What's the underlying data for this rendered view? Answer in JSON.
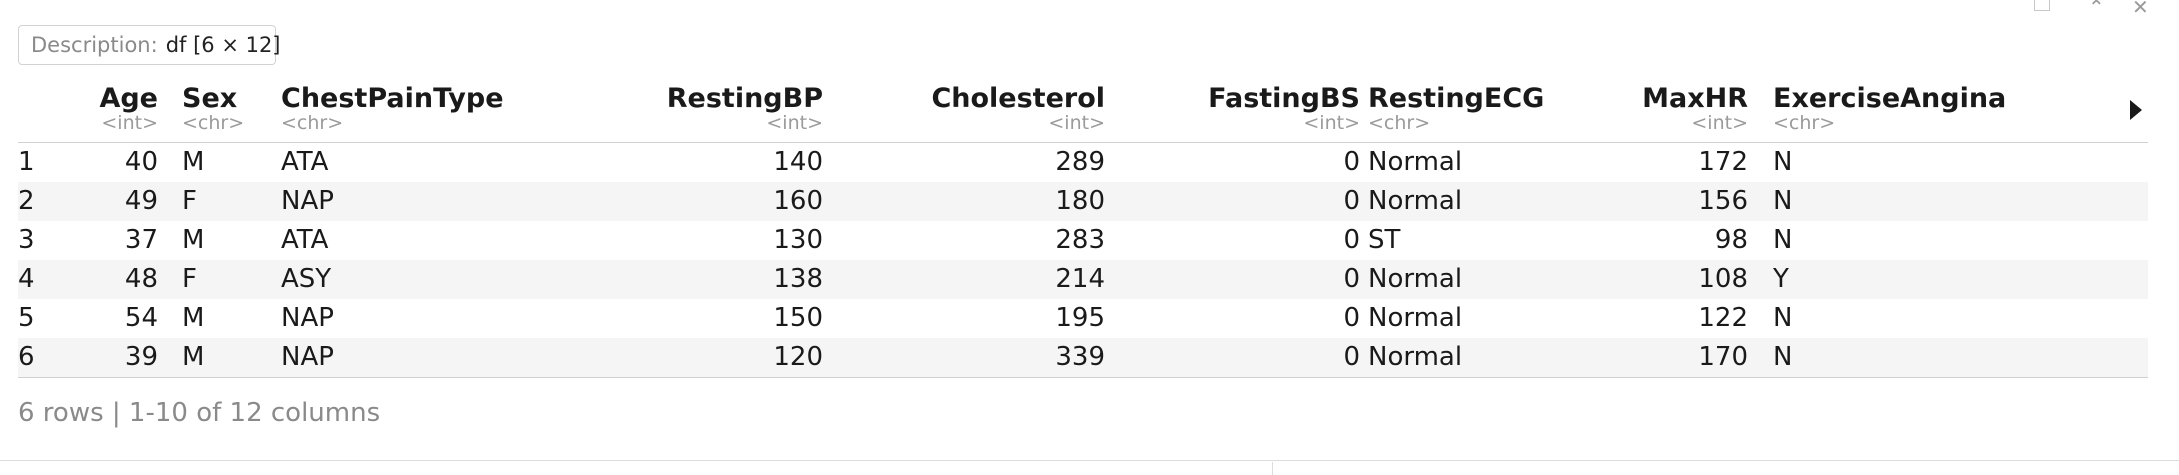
{
  "description": {
    "label": "Description:",
    "value": "df [6 × 12]"
  },
  "columns": [
    {
      "name": "",
      "type": ""
    },
    {
      "name": "Age",
      "type": "<int>"
    },
    {
      "name": "Sex",
      "type": "<chr>"
    },
    {
      "name": "ChestPainType",
      "type": "<chr>"
    },
    {
      "name": "RestingBP",
      "type": "<int>"
    },
    {
      "name": "Cholesterol",
      "type": "<int>"
    },
    {
      "name": "FastingBS",
      "type": "<int>"
    },
    {
      "name": "RestingECG",
      "type": "<chr>"
    },
    {
      "name": "MaxHR",
      "type": "<int>"
    },
    {
      "name": "ExerciseAngina",
      "type": "<chr>"
    }
  ],
  "rows": [
    [
      "1",
      "40",
      "M",
      "ATA",
      "140",
      "289",
      "0",
      "Normal",
      "172",
      "N"
    ],
    [
      "2",
      "49",
      "F",
      "NAP",
      "160",
      "180",
      "0",
      "Normal",
      "156",
      "N"
    ],
    [
      "3",
      "37",
      "M",
      "ATA",
      "130",
      "283",
      "0",
      "ST",
      "98",
      "N"
    ],
    [
      "4",
      "48",
      "F",
      "ASY",
      "138",
      "214",
      "0",
      "Normal",
      "108",
      "Y"
    ],
    [
      "5",
      "54",
      "M",
      "NAP",
      "150",
      "195",
      "0",
      "Normal",
      "122",
      "N"
    ],
    [
      "6",
      "39",
      "M",
      "NAP",
      "120",
      "339",
      "0",
      "Normal",
      "170",
      "N"
    ]
  ],
  "footer": "6 rows | 1-10 of 12 columns",
  "icons": {
    "next_columns": "triangle-right-icon",
    "window_doc": "document-icon",
    "collapse": "chevron-up-icon",
    "close": "close-icon"
  }
}
